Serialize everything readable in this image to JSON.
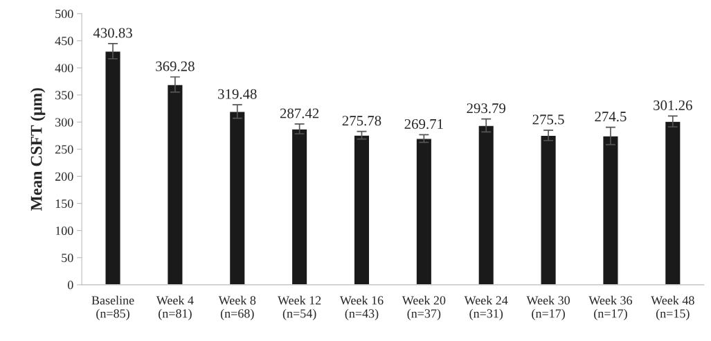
{
  "chart_data": {
    "type": "bar",
    "ylabel": "Mean CSFT (μm)",
    "categories": [
      "Baseline\n(n=85)",
      "Week 4\n(n=81)",
      "Week 8\n(n=68)",
      "Week 12\n(n=54)",
      "Week 16\n(n=43)",
      "Week 20\n(n=37)",
      "Week 24\n(n=31)",
      "Week 30\n(n=17)",
      "Week 36\n(n=17)",
      "Week 48\n(n=15)"
    ],
    "values": [
      430.83,
      369.28,
      319.48,
      287.42,
      275.78,
      269.71,
      293.79,
      275.5,
      274.5,
      301.26
    ],
    "errors": [
      14,
      14,
      12.5,
      9,
      7,
      7,
      12,
      9.5,
      16,
      10
    ],
    "color": "#1a1a1a",
    "data_labels": true,
    "ylim": [
      0,
      500
    ],
    "yticks": [
      0,
      50,
      100,
      150,
      200,
      250,
      300,
      350,
      400,
      450,
      500
    ],
    "grid": false,
    "legend": false
  }
}
